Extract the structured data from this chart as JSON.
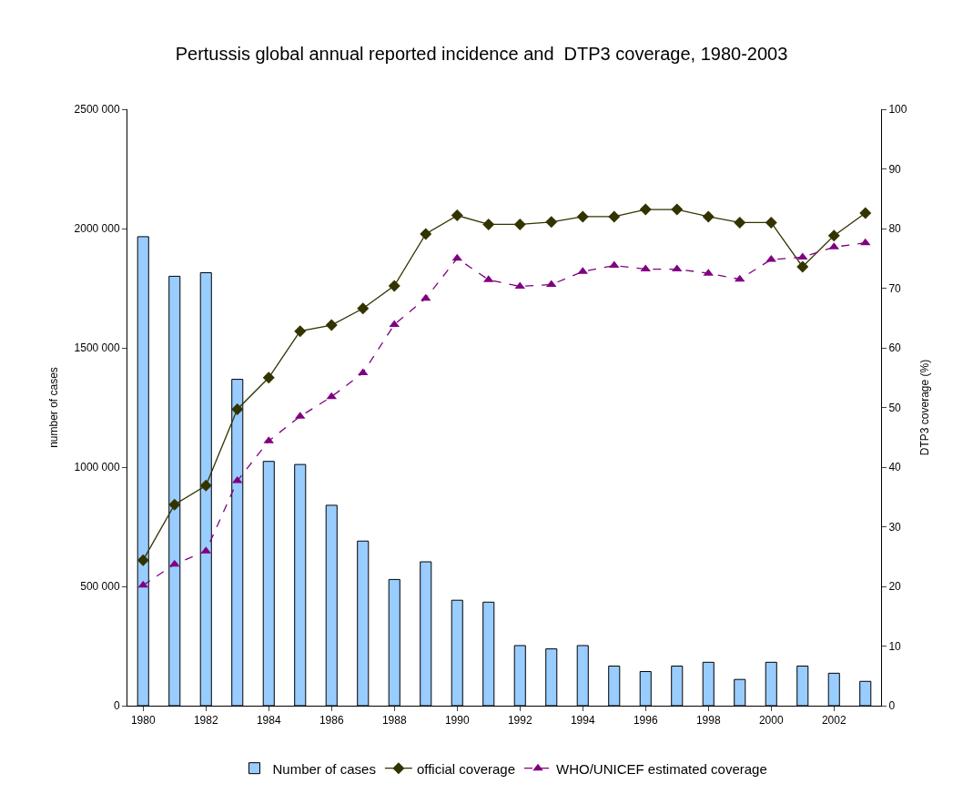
{
  "chart_data": {
    "type": "bar",
    "title": "Pertussis global annual reported incidence and  DTP3 coverage, 1980-2003",
    "ylabel": "number of cases",
    "y2label": "DTP3 coverage (%)",
    "categories": [
      "1980",
      null,
      "1982",
      null,
      "1984",
      null,
      "1986",
      null,
      "1988",
      null,
      "1990",
      null,
      "1992",
      null,
      "1994",
      null,
      "1996",
      null,
      "1998",
      null,
      "2000",
      null,
      "2002",
      null
    ],
    "series": [
      {
        "name": "Number of cases",
        "color": "#99ccff",
        "values": [
          1966000,
          1800000,
          1815000,
          1368000,
          1024000,
          1011000,
          840000,
          690000,
          529000,
          603000,
          442000,
          434000,
          252000,
          238000,
          252000,
          166000,
          143000,
          166000,
          182000,
          110000,
          182000,
          166000,
          136000,
          102000
        ]
      },
      {
        "name": "official coverage",
        "type": "line",
        "axis": "y2",
        "color": "#333300",
        "marker": "diamond",
        "line_style": "solid",
        "values": [
          24.4,
          33.7,
          36.9,
          49.7,
          55.0,
          62.8,
          63.8,
          66.6,
          70.4,
          79.1,
          82.2,
          80.7,
          80.7,
          81.1,
          82.0,
          82.0,
          83.2,
          83.2,
          82.0,
          81.0,
          81.0,
          73.6,
          78.8,
          82.6
        ]
      },
      {
        "name": "WHO/UNICEF estimated coverage",
        "type": "line",
        "axis": "y2",
        "color": "#800080",
        "marker": "triangle",
        "line_style": "dashed",
        "values": [
          20.2,
          23.7,
          25.9,
          37.7,
          44.4,
          48.5,
          51.8,
          55.8,
          63.9,
          68.3,
          75.0,
          71.4,
          70.3,
          70.6,
          72.8,
          73.8,
          73.2,
          73.2,
          72.5,
          71.5,
          74.8,
          75.2,
          76.9,
          77.6
        ]
      }
    ],
    "ylim": [
      0,
      2500000
    ],
    "yticks": [
      0,
      {
        "value": 500000,
        "label": "500 000"
      },
      {
        "value": 1000000,
        "label": "1000 000"
      },
      {
        "value": 1500000,
        "label": "1500 000"
      },
      {
        "value": 2000000,
        "label": "2000 000"
      },
      {
        "value": 2500000,
        "label": "2500 000"
      }
    ],
    "y2lim": [
      0,
      100
    ],
    "y2ticks": [
      0,
      10,
      20,
      30,
      40,
      50,
      60,
      70,
      80,
      90,
      100
    ],
    "legend": "bottom"
  }
}
